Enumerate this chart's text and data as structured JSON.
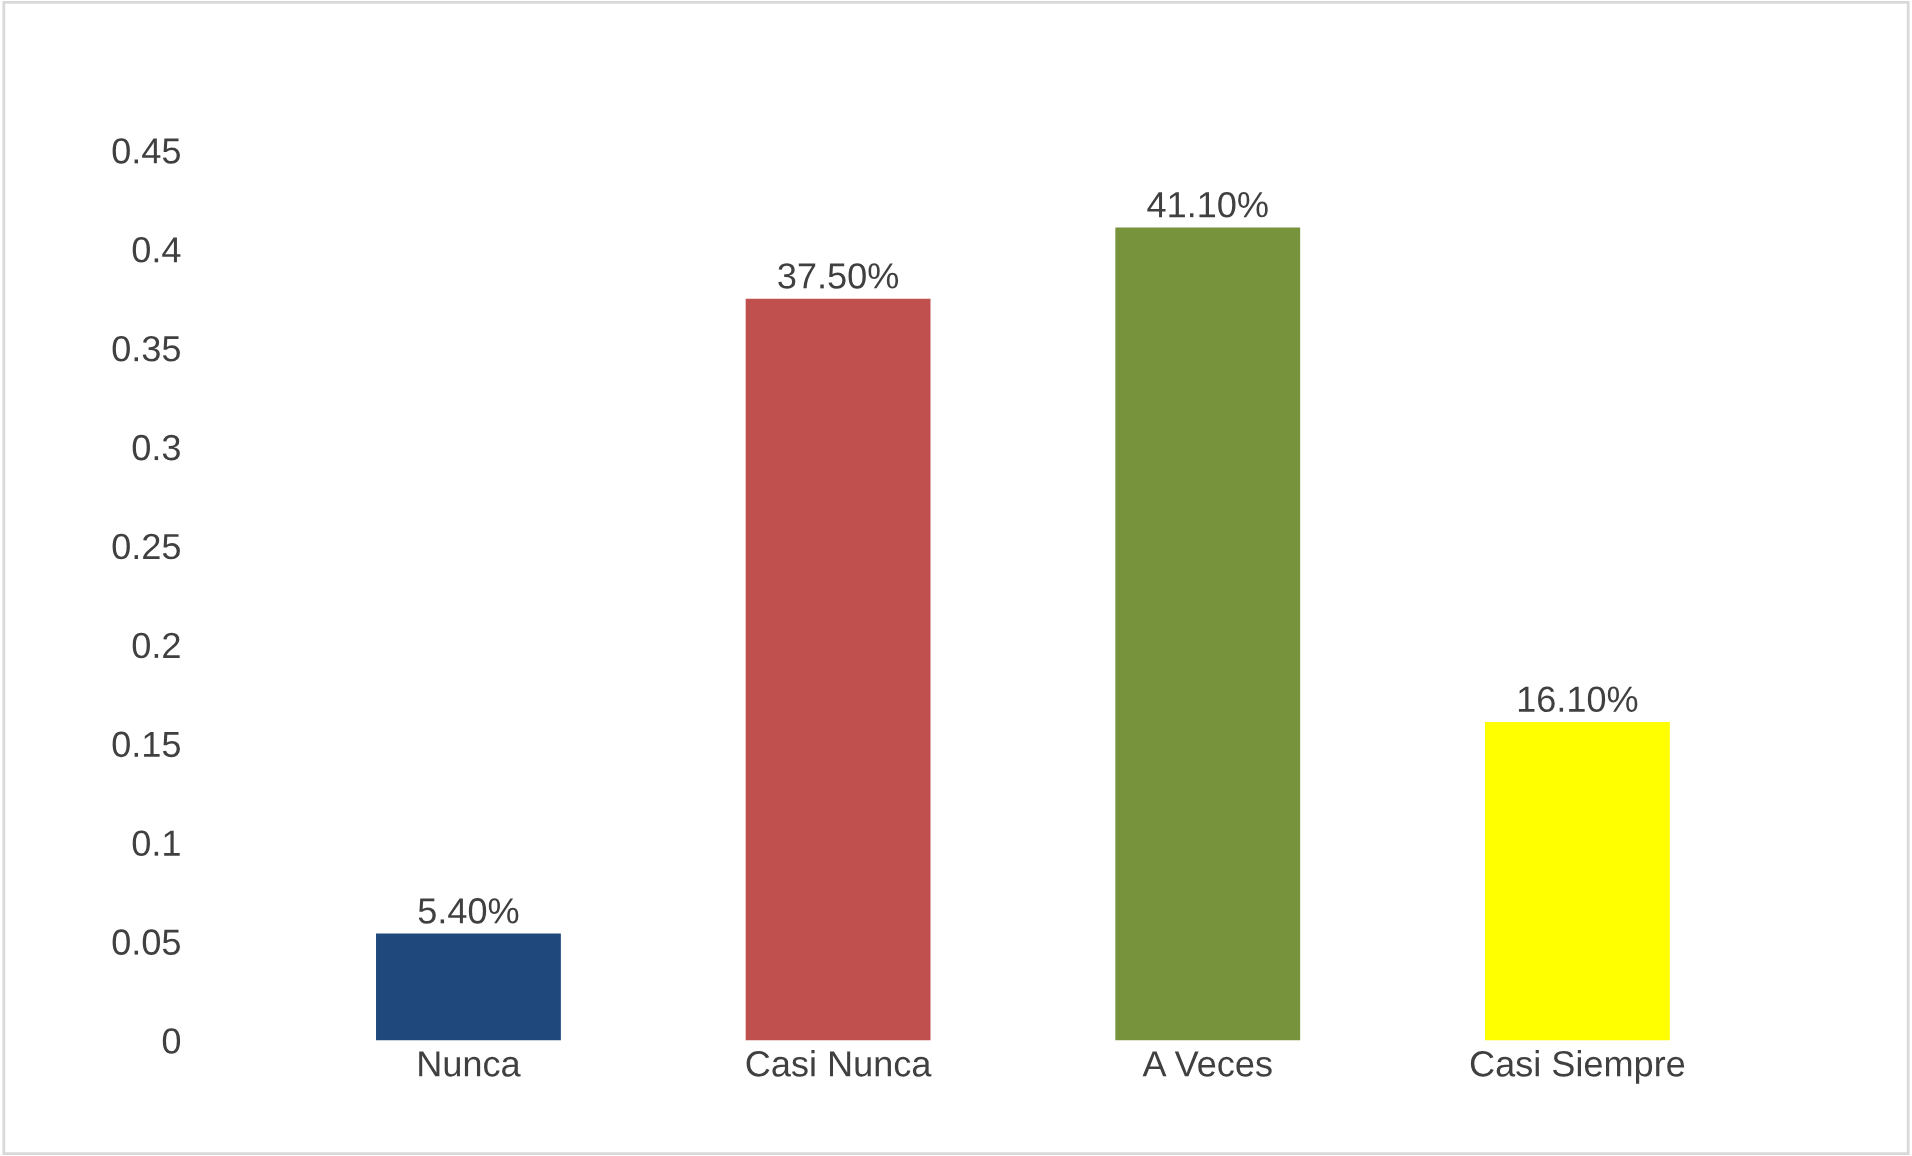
{
  "chart_data": {
    "type": "bar",
    "categories": [
      "Nunca",
      "Casi Nunca",
      "A Veces",
      "Casi Siempre"
    ],
    "values": [
      0.054,
      0.375,
      0.411,
      0.161
    ],
    "colors": [
      "#1f497d",
      "#c0504d",
      "#77933c",
      "#ffff00"
    ],
    "value_labels": [
      "5.40%",
      "37.50%",
      "41.10%",
      "16.10%"
    ],
    "ylim": [
      0,
      0.45
    ],
    "yticks": [
      0,
      0.05,
      0.1,
      0.15,
      0.2,
      0.25,
      0.3,
      0.35,
      0.4,
      0.45
    ],
    "grid": false,
    "legend": false
  }
}
